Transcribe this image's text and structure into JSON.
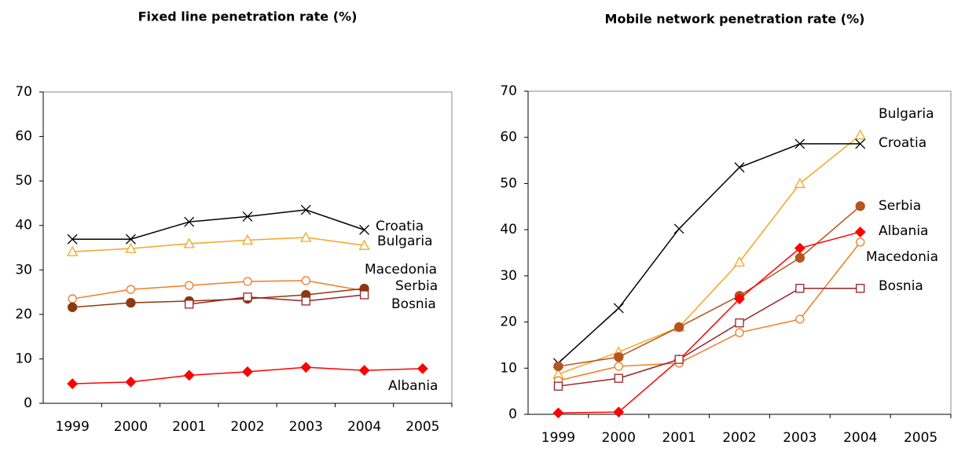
{
  "chart_data": [
    {
      "type": "line",
      "title": "Fixed line penetration rate (%)",
      "categories": [
        "1999",
        "2000",
        "2001",
        "2002",
        "2003",
        "2004",
        "2005"
      ],
      "ylim": [
        0,
        70
      ],
      "yticks": [
        0,
        10,
        20,
        30,
        40,
        50,
        60,
        70
      ],
      "series": [
        {
          "name": "Croatia",
          "color": "#000000",
          "marker": "x",
          "values": [
            36.9,
            36.9,
            40.8,
            42.0,
            43.5,
            39.0,
            null
          ]
        },
        {
          "name": "Bulgaria",
          "color": "#f5a623",
          "marker": "triangle",
          "values": [
            34.1,
            34.8,
            35.9,
            36.7,
            37.3,
            35.5,
            null
          ]
        },
        {
          "name": "Macedonia",
          "color": "#f07c22",
          "marker": "open-circle",
          "values": [
            23.5,
            25.6,
            26.5,
            27.4,
            27.6,
            25.3,
            null
          ]
        },
        {
          "name": "Serbia",
          "color": "#8b3a0f",
          "marker": "dot",
          "values": [
            21.6,
            22.6,
            23.0,
            23.5,
            24.4,
            25.8,
            null
          ]
        },
        {
          "name": "Bosnia",
          "color": "#9b2226",
          "marker": "square",
          "values": [
            null,
            null,
            22.3,
            23.9,
            23.0,
            24.4,
            null
          ]
        },
        {
          "name": "Albania",
          "color": "#ff0000",
          "marker": "diamond",
          "values": [
            4.4,
            4.8,
            6.3,
            7.1,
            8.1,
            7.4,
            7.8
          ]
        }
      ]
    },
    {
      "type": "line",
      "title": "Mobile network penetration rate (%)",
      "categories": [
        "1999",
        "2000",
        "2001",
        "2002",
        "2003",
        "2004",
        "2005"
      ],
      "ylim": [
        0,
        70
      ],
      "yticks": [
        0,
        10,
        20,
        30,
        40,
        50,
        60,
        70
      ],
      "series": [
        {
          "name": "Bulgaria",
          "color": "#f5a623",
          "marker": "triangle",
          "values": [
            8.7,
            13.5,
            18.9,
            33.0,
            50.0,
            60.5,
            null
          ]
        },
        {
          "name": "Croatia",
          "color": "#000000",
          "marker": "x",
          "values": [
            11.1,
            23.0,
            40.2,
            53.5,
            58.6,
            58.6,
            null
          ]
        },
        {
          "name": "Serbia",
          "color": "#b5541c",
          "marker": "dot",
          "values": [
            10.4,
            12.4,
            18.9,
            25.7,
            33.9,
            45.1,
            null
          ]
        },
        {
          "name": "Albania",
          "color": "#ff0000",
          "marker": "diamond",
          "values": [
            0.3,
            0.5,
            11.8,
            25.0,
            36.0,
            39.5,
            null
          ]
        },
        {
          "name": "Macedonia",
          "color": "#f07c22",
          "marker": "open-circle",
          "values": [
            7.3,
            10.4,
            11.1,
            17.7,
            20.6,
            37.3,
            null
          ]
        },
        {
          "name": "Bosnia",
          "color": "#9b2226",
          "marker": "square",
          "values": [
            6.1,
            7.8,
            11.9,
            19.8,
            27.3,
            27.3,
            null
          ]
        }
      ]
    }
  ]
}
